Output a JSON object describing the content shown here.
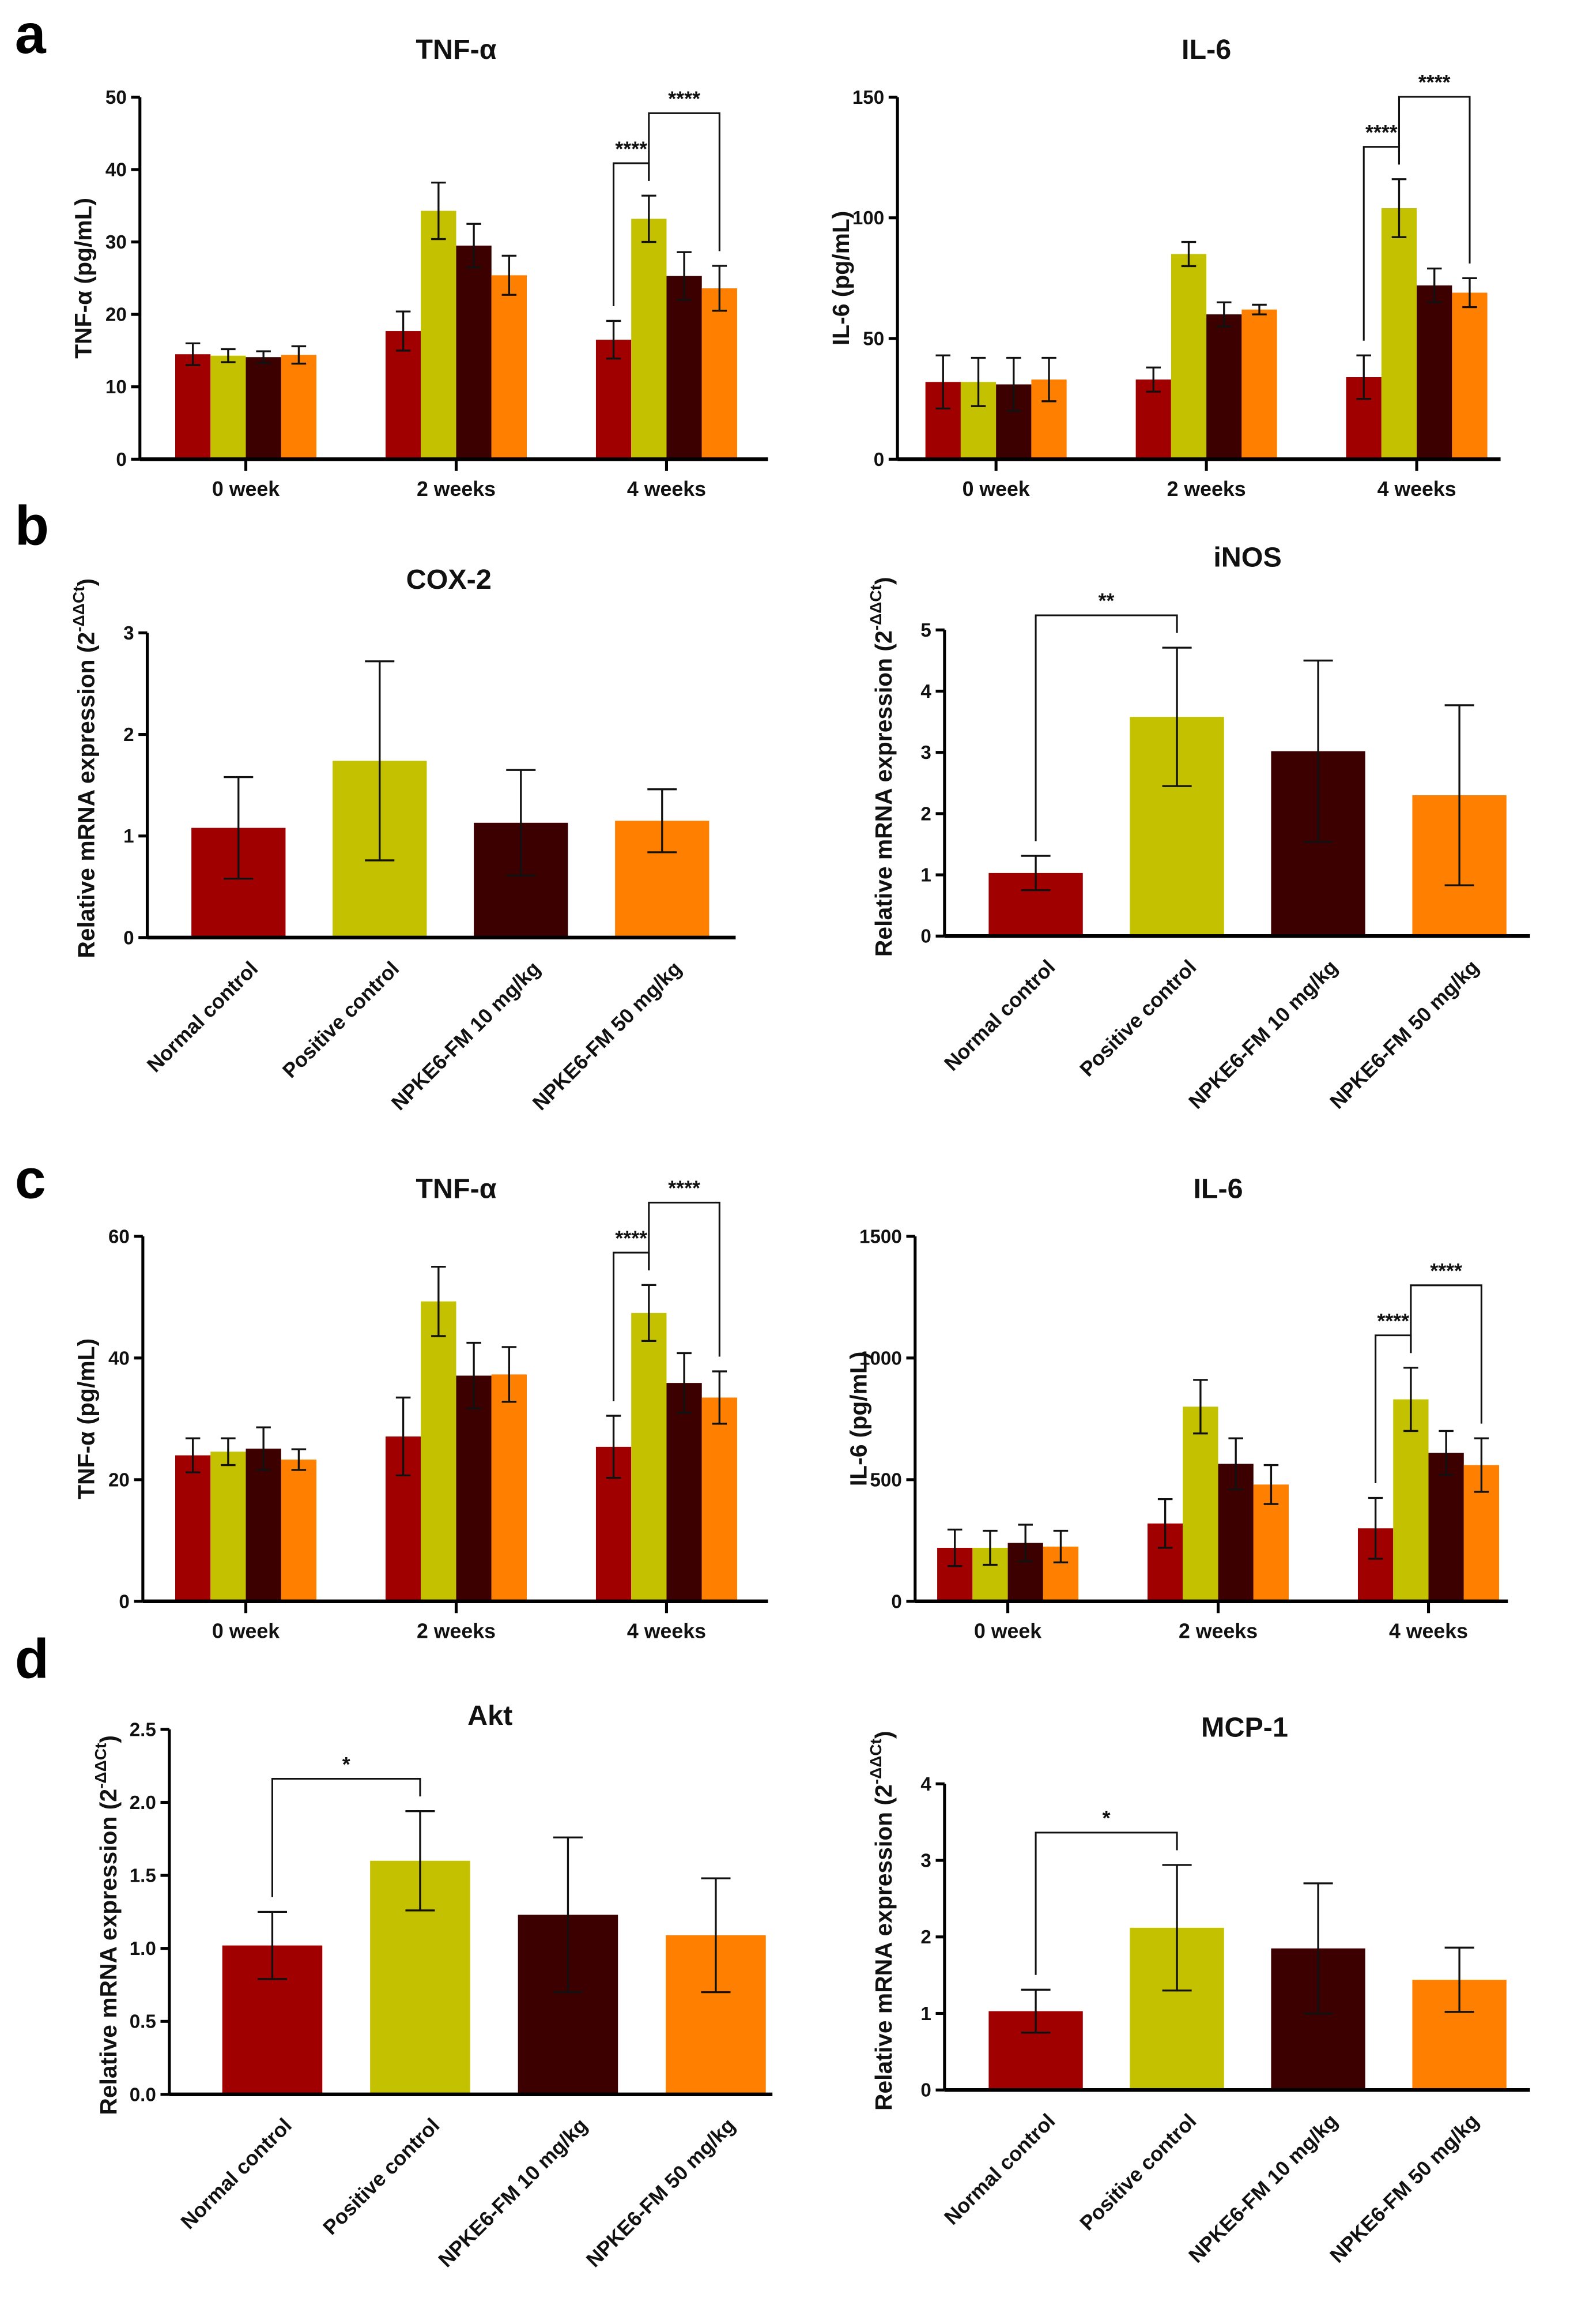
{
  "panels": [
    "a",
    "b",
    "c",
    "d"
  ],
  "colors": [
    "#A00000",
    "#C3C100",
    "#3D0000",
    "#FF8000"
  ],
  "chart_data": [
    {
      "type": "bar",
      "panel": "a",
      "title": "TNF-α",
      "ylabel": "TNF-α (pg/mL)",
      "grouped": true,
      "groups": [
        "0 week",
        "2 weeks",
        "4 weeks"
      ],
      "values": [
        [
          14.5,
          14.3,
          14.1,
          14.4
        ],
        [
          17.7,
          34.3,
          29.5,
          25.4
        ],
        [
          16.5,
          33.2,
          25.3,
          23.6
        ]
      ],
      "errors": [
        [
          1.5,
          0.9,
          0.8,
          1.2
        ],
        [
          2.7,
          3.9,
          3.0,
          2.7
        ],
        [
          2.6,
          3.2,
          3.3,
          3.1
        ]
      ],
      "ylim": [
        0,
        50
      ],
      "yticks": [
        "0",
        "10",
        "20",
        "30",
        "40",
        "50"
      ],
      "significance": [
        {
          "group": 2,
          "from": 0,
          "to": 1,
          "label": "****"
        },
        {
          "group": 2,
          "from": 1,
          "to": 3,
          "label": "****"
        }
      ]
    },
    {
      "type": "bar",
      "panel": "a",
      "title": "IL-6",
      "ylabel": "IL-6 (pg/mL)",
      "grouped": true,
      "groups": [
        "0 week",
        "2 weeks",
        "4 weeks"
      ],
      "values": [
        [
          32,
          32,
          31,
          33
        ],
        [
          33,
          85,
          60,
          62
        ],
        [
          34,
          104,
          72,
          69
        ]
      ],
      "errors": [
        [
          11,
          10,
          11,
          9
        ],
        [
          5,
          5,
          5,
          2
        ],
        [
          9,
          12,
          7,
          6
        ]
      ],
      "ylim": [
        0,
        150
      ],
      "yticks": [
        "0",
        "50",
        "100",
        "150"
      ],
      "significance": [
        {
          "group": 2,
          "from": 0,
          "to": 1,
          "label": "****"
        },
        {
          "group": 2,
          "from": 1,
          "to": 3,
          "label": "****"
        }
      ]
    },
    {
      "type": "bar",
      "panel": "b",
      "title": "COX-2",
      "ylabel": "Relative mRNA expression (2",
      "ylabel_sup": "-ΔΔCt",
      "ylabel_end": ")",
      "grouped": false,
      "categories": [
        "Normal control",
        "Positive control",
        "NPKE6-FM 10 mg/kg",
        "NPKE6-FM 50 mg/kg"
      ],
      "values": [
        1.08,
        1.74,
        1.13,
        1.15
      ],
      "errors": [
        0.5,
        0.98,
        0.52,
        0.31
      ],
      "ylim": [
        0,
        3
      ],
      "yticks": [
        "0",
        "1",
        "2",
        "3"
      ],
      "significance": []
    },
    {
      "type": "bar",
      "panel": "b",
      "title": "iNOS",
      "ylabel": "Relative mRNA expression (2",
      "ylabel_sup": "-ΔΔCt",
      "ylabel_end": ")",
      "grouped": false,
      "categories": [
        "Normal control",
        "Positive control",
        "NPKE6-FM 10 mg/kg",
        "NPKE6-FM 50 mg/kg"
      ],
      "values": [
        1.03,
        3.58,
        3.02,
        2.3
      ],
      "errors": [
        0.28,
        1.13,
        1.48,
        1.47
      ],
      "ylim": [
        0,
        5
      ],
      "yticks": [
        "0",
        "1",
        "2",
        "3",
        "4",
        "5"
      ],
      "significance": [
        {
          "from": 0,
          "to": 1,
          "label": "**"
        }
      ]
    },
    {
      "type": "bar",
      "panel": "c",
      "title": "TNF-α",
      "ylabel": "TNF-α (pg/mL)",
      "grouped": true,
      "groups": [
        "0 week",
        "2 weeks",
        "4 weeks"
      ],
      "values": [
        [
          24.0,
          24.6,
          25.1,
          23.3
        ],
        [
          27.1,
          49.3,
          37.1,
          37.3
        ],
        [
          25.4,
          47.4,
          35.9,
          33.5
        ]
      ],
      "errors": [
        [
          2.8,
          2.2,
          3.5,
          1.7
        ],
        [
          6.4,
          5.7,
          5.4,
          4.5
        ],
        [
          5.1,
          4.6,
          4.9,
          4.3
        ]
      ],
      "ylim": [
        0,
        60
      ],
      "yticks": [
        "0",
        "20",
        "40",
        "60"
      ],
      "significance": [
        {
          "group": 2,
          "from": 0,
          "to": 1,
          "label": "****"
        },
        {
          "group": 2,
          "from": 1,
          "to": 3,
          "label": "****"
        }
      ]
    },
    {
      "type": "bar",
      "panel": "c",
      "title": "IL-6",
      "ylabel": "IL-6 (pg/mL)",
      "grouped": true,
      "groups": [
        "0 week",
        "2 weeks",
        "4 weeks"
      ],
      "values": [
        [
          220,
          220,
          240,
          225
        ],
        [
          320,
          800,
          565,
          480
        ],
        [
          300,
          830,
          610,
          560
        ]
      ],
      "errors": [
        [
          75,
          70,
          75,
          65
        ],
        [
          100,
          110,
          105,
          80
        ],
        [
          125,
          130,
          90,
          110
        ]
      ],
      "ylim": [
        0,
        1500
      ],
      "yticks": [
        "0",
        "500",
        "1000",
        "1500"
      ],
      "significance": [
        {
          "group": 2,
          "from": 0,
          "to": 1,
          "label": "****"
        },
        {
          "group": 2,
          "from": 1,
          "to": 3,
          "label": "****"
        }
      ]
    },
    {
      "type": "bar",
      "panel": "d",
      "title": "Akt",
      "ylabel": "Relative mRNA expression (2",
      "ylabel_sup": "-ΔΔCt",
      "ylabel_end": ")",
      "grouped": false,
      "categories": [
        "Normal control",
        "Positive control",
        "NPKE6-FM 10 mg/kg",
        "NPKE6-FM 50 mg/kg"
      ],
      "values": [
        1.02,
        1.6,
        1.23,
        1.09
      ],
      "errors": [
        0.23,
        0.34,
        0.53,
        0.39
      ],
      "ylim": [
        0,
        2.5
      ],
      "yticks": [
        "0.0",
        "0.5",
        "1.0",
        "1.5",
        "2.0",
        "2.5"
      ],
      "significance": [
        {
          "from": 0,
          "to": 1,
          "label": "*"
        }
      ]
    },
    {
      "type": "bar",
      "panel": "d",
      "title": "MCP-1",
      "ylabel": "Relative mRNA expression (2",
      "ylabel_sup": "-ΔΔCt",
      "ylabel_end": ")",
      "grouped": false,
      "categories": [
        "Normal control",
        "Positive control",
        "NPKE6-FM 10 mg/kg",
        "NPKE6-FM 50 mg/kg"
      ],
      "values": [
        1.03,
        2.12,
        1.85,
        1.44
      ],
      "errors": [
        0.28,
        0.82,
        0.85,
        0.42
      ],
      "ylim": [
        0,
        4
      ],
      "yticks": [
        "0",
        "1",
        "2",
        "3",
        "4"
      ],
      "significance": [
        {
          "from": 0,
          "to": 1,
          "label": "*"
        }
      ]
    }
  ]
}
